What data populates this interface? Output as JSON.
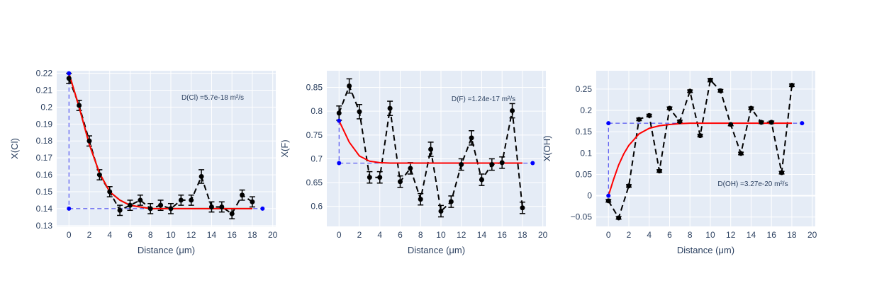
{
  "chart_data": [
    {
      "type": "scatter",
      "xlabel": "Distance (μm)",
      "ylabel": "X(Cl)",
      "annotation": "D(Cl) =5.7e-18 m²/s",
      "xlim": [
        -1.2,
        20.3
      ],
      "ylim": [
        0.1295,
        0.2215
      ],
      "xticks": [
        0,
        2,
        4,
        6,
        8,
        10,
        12,
        14,
        16,
        18,
        20
      ],
      "yticks": [
        0.13,
        0.14,
        0.15,
        0.16,
        0.17,
        0.18,
        0.19,
        0.2,
        0.21,
        0.22
      ],
      "ytick_labels": [
        "0.13",
        "0.14",
        "0.15",
        "0.16",
        "0.17",
        "0.18",
        "0.19",
        "0.2",
        "0.21",
        "0.22"
      ],
      "colors": {
        "data": "#000000",
        "fit": "#ff0000",
        "fit2": "#228b22",
        "guide": "#3333ee",
        "marker": "#0000ff"
      },
      "measured": {
        "x": [
          0,
          1,
          2,
          3,
          4,
          5,
          6,
          7,
          8,
          9,
          10,
          11,
          12,
          13,
          14,
          15,
          16,
          17,
          18
        ],
        "y": [
          0.217,
          0.201,
          0.18,
          0.16,
          0.15,
          0.139,
          0.142,
          0.145,
          0.14,
          0.142,
          0.14,
          0.145,
          0.145,
          0.159,
          0.141,
          0.141,
          0.137,
          0.148,
          0.144
        ],
        "error": [
          0.003,
          0.003,
          0.003,
          0.003,
          0.003,
          0.003,
          0.003,
          0.003,
          0.003,
          0.003,
          0.003,
          0.003,
          0.003,
          0.004,
          0.003,
          0.003,
          0.003,
          0.003,
          0.003
        ]
      },
      "fit": {
        "x": [
          0,
          1,
          2,
          3,
          4,
          5,
          6,
          7,
          8,
          9,
          10,
          11,
          12,
          13,
          14,
          15,
          16,
          17,
          18
        ],
        "y": [
          0.22,
          0.2,
          0.178,
          0.161,
          0.15,
          0.145,
          0.142,
          0.141,
          0.14,
          0.14,
          0.14,
          0.14,
          0.14,
          0.14,
          0.14,
          0.14,
          0.14,
          0.14,
          0.14
        ]
      },
      "guides": {
        "x0": 0,
        "y_init": 0.22,
        "y_bulk": 0.14,
        "x_end": 19
      }
    },
    {
      "type": "scatter",
      "xlabel": "Distance (μm)",
      "ylabel": "X(F)",
      "annotation": "D(F) =1.24e-17 m²/s",
      "xlim": [
        -1.2,
        20.3
      ],
      "ylim": [
        0.558,
        0.885
      ],
      "xticks": [
        0,
        2,
        4,
        6,
        8,
        10,
        12,
        14,
        16,
        18,
        20
      ],
      "yticks": [
        0.6,
        0.65,
        0.7,
        0.75,
        0.8,
        0.85
      ],
      "ytick_labels": [
        "0.6",
        "0.65",
        "0.7",
        "0.75",
        "0.8",
        "0.85"
      ],
      "colors": {
        "data": "#000000",
        "fit": "#ff0000",
        "guide": "#3333ee",
        "marker": "#0000ff"
      },
      "measured": {
        "x": [
          0,
          1,
          2,
          3,
          4,
          5,
          6,
          7,
          8,
          9,
          10,
          11,
          12,
          13,
          14,
          15,
          16,
          17,
          18
        ],
        "y": [
          0.796,
          0.853,
          0.799,
          0.661,
          0.661,
          0.806,
          0.652,
          0.68,
          0.615,
          0.72,
          0.59,
          0.61,
          0.688,
          0.744,
          0.656,
          0.688,
          0.692,
          0.801,
          0.597
        ],
        "error": [
          0.015,
          0.015,
          0.015,
          0.012,
          0.012,
          0.015,
          0.012,
          0.012,
          0.012,
          0.015,
          0.012,
          0.012,
          0.012,
          0.015,
          0.012,
          0.012,
          0.012,
          0.015,
          0.012
        ]
      },
      "fit": {
        "x": [
          0,
          1,
          2,
          3,
          4,
          5,
          6,
          7,
          8,
          9,
          10,
          11,
          12,
          13,
          14,
          15,
          16,
          17,
          18
        ],
        "y": [
          0.78,
          0.735,
          0.706,
          0.695,
          0.692,
          0.691,
          0.691,
          0.691,
          0.691,
          0.691,
          0.691,
          0.691,
          0.691,
          0.691,
          0.691,
          0.691,
          0.691,
          0.691,
          0.691
        ]
      },
      "guides": {
        "x0": 0,
        "y_init": 0.78,
        "y_bulk": 0.691,
        "x_end": 19
      }
    },
    {
      "type": "scatter",
      "xlabel": "Distance (μm)",
      "ylabel": "X(OH)",
      "annotation": "D(OH) =3.27e-20 m²/s",
      "xlim": [
        -1.2,
        20.3
      ],
      "ylim": [
        -0.072,
        0.293
      ],
      "xticks": [
        0,
        2,
        4,
        6,
        8,
        10,
        12,
        14,
        16,
        18,
        20
      ],
      "yticks": [
        -0.05,
        0,
        0.05,
        0.1,
        0.15,
        0.2,
        0.25
      ],
      "ytick_labels": [
        "−0.05",
        "0",
        "0.05",
        "0.1",
        "0.15",
        "0.2",
        "0.25"
      ],
      "colors": {
        "data": "#000000",
        "fit": "#ff0000",
        "guide": "#3333ee",
        "marker": "#0000ff"
      },
      "measured": {
        "x": [
          0,
          1,
          2,
          3,
          4,
          5,
          6,
          7,
          8,
          9,
          10,
          11,
          12,
          13,
          14,
          15,
          16,
          17,
          18
        ],
        "y": [
          -0.012,
          -0.052,
          0.023,
          0.179,
          0.188,
          0.058,
          0.205,
          0.174,
          0.245,
          0.141,
          0.271,
          0.246,
          0.167,
          0.099,
          0.205,
          0.172,
          0.172,
          0.054,
          0.259
        ],
        "error": [
          0.003,
          0.003,
          0.003,
          0.003,
          0.003,
          0.003,
          0.003,
          0.003,
          0.003,
          0.003,
          0.004,
          0.003,
          0.003,
          0.003,
          0.003,
          0.003,
          0.003,
          0.003,
          0.003
        ]
      },
      "fit": {
        "x": [
          0,
          0.5,
          1,
          1.5,
          2,
          3,
          4,
          5,
          6,
          7,
          8,
          9,
          10,
          11,
          12,
          13,
          14,
          15,
          16,
          17,
          18
        ],
        "y": [
          0.0,
          0.038,
          0.072,
          0.098,
          0.118,
          0.145,
          0.158,
          0.164,
          0.167,
          0.169,
          0.17,
          0.17,
          0.17,
          0.17,
          0.17,
          0.17,
          0.17,
          0.17,
          0.17,
          0.17,
          0.17
        ]
      },
      "guides": {
        "x0": 0,
        "y_init": 0.0,
        "y_bulk": 0.17,
        "x_end": 19
      }
    }
  ]
}
